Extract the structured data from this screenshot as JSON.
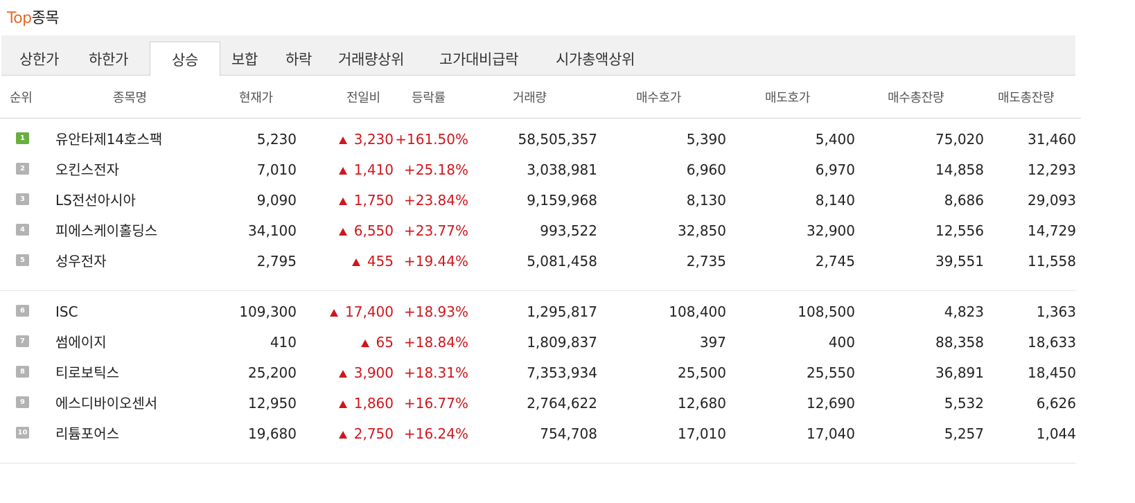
{
  "header": {
    "title_accent": "Top",
    "title_rest": "종목"
  },
  "tabs": [
    {
      "label": "상한가"
    },
    {
      "label": "하한가"
    },
    {
      "label": "상승"
    },
    {
      "label": "보합"
    },
    {
      "label": "하락"
    },
    {
      "label": "거래량상위"
    },
    {
      "label": "고가대비급락"
    },
    {
      "label": "시가총액상위"
    }
  ],
  "active_tab": "상승",
  "columns": [
    "순위",
    "종목명",
    "현재가",
    "전일비",
    "등락률",
    "거래량",
    "매수호가",
    "매도호가",
    "매수총잔량",
    "매도총잔량"
  ],
  "rows": [
    {
      "rank": "1",
      "name": "유안타제14호스팩",
      "price": "5,230",
      "change": "3,230",
      "rate": "+161.50%",
      "volume": "58,505,357",
      "bid": "5,390",
      "ask": "5,400",
      "bid_total": "75,020",
      "ask_total": "31,460"
    },
    {
      "rank": "2",
      "name": "오킨스전자",
      "price": "7,010",
      "change": "1,410",
      "rate": "+25.18%",
      "volume": "3,038,981",
      "bid": "6,960",
      "ask": "6,970",
      "bid_total": "14,858",
      "ask_total": "12,293"
    },
    {
      "rank": "3",
      "name": "LS전선아시아",
      "price": "9,090",
      "change": "1,750",
      "rate": "+23.84%",
      "volume": "9,159,968",
      "bid": "8,130",
      "ask": "8,140",
      "bid_total": "8,686",
      "ask_total": "29,093"
    },
    {
      "rank": "4",
      "name": "피에스케이홀딩스",
      "price": "34,100",
      "change": "6,550",
      "rate": "+23.77%",
      "volume": "993,522",
      "bid": "32,850",
      "ask": "32,900",
      "bid_total": "12,556",
      "ask_total": "14,729"
    },
    {
      "rank": "5",
      "name": "성우전자",
      "price": "2,795",
      "change": "455",
      "rate": "+19.44%",
      "volume": "5,081,458",
      "bid": "2,735",
      "ask": "2,745",
      "bid_total": "39,551",
      "ask_total": "11,558"
    },
    {
      "rank": "6",
      "name": "ISC",
      "price": "109,300",
      "change": "17,400",
      "rate": "+18.93%",
      "volume": "1,295,817",
      "bid": "108,400",
      "ask": "108,500",
      "bid_total": "4,823",
      "ask_total": "1,363"
    },
    {
      "rank": "7",
      "name": "썸에이지",
      "price": "410",
      "change": "65",
      "rate": "+18.84%",
      "volume": "1,809,837",
      "bid": "397",
      "ask": "400",
      "bid_total": "88,358",
      "ask_total": "18,633"
    },
    {
      "rank": "8",
      "name": "티로보틱스",
      "price": "25,200",
      "change": "3,900",
      "rate": "+18.31%",
      "volume": "7,353,934",
      "bid": "25,500",
      "ask": "25,550",
      "bid_total": "36,891",
      "ask_total": "18,450"
    },
    {
      "rank": "9",
      "name": "에스디바이오센서",
      "price": "12,950",
      "change": "1,860",
      "rate": "+16.77%",
      "volume": "2,764,622",
      "bid": "12,680",
      "ask": "12,690",
      "bid_total": "5,532",
      "ask_total": "6,626"
    },
    {
      "rank": "10",
      "name": "리튬포어스",
      "price": "19,680",
      "change": "2,750",
      "rate": "+16.24%",
      "volume": "754,708",
      "bid": "17,010",
      "ask": "17,040",
      "bid_total": "5,257",
      "ask_total": "1,044"
    }
  ],
  "colors": {
    "accent": "#e8692a",
    "up": "#d0161c",
    "rank_first": "#6aae3f",
    "rank_other": "#b3b3b3"
  },
  "icons": {
    "change_up": "up-triangle-icon"
  }
}
